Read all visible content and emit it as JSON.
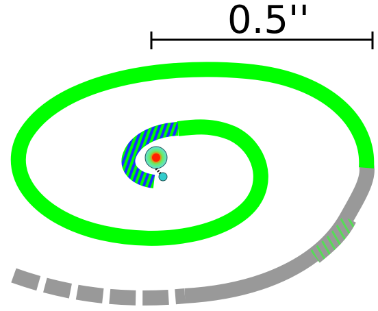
{
  "scale_bar": {
    "label": "0.5''"
  },
  "colors": {
    "spiral_main": "#00ff00",
    "spiral_inner_stripe": "#1a2fff",
    "spiral_outer_gray": "#999999",
    "scale_bar": "#000000",
    "center_core": "#ff2200",
    "center_halo": "#66dddd",
    "tail_blob": "#33cccc"
  },
  "icons": [
    "spiral-track",
    "scale-bar",
    "center-marker"
  ]
}
